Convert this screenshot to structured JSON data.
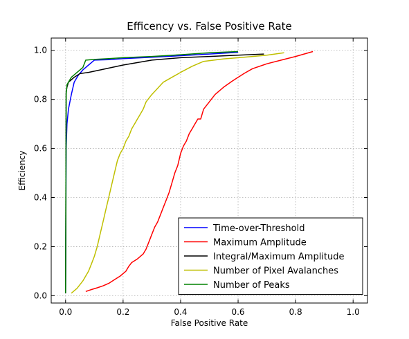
{
  "chart_data": {
    "type": "line",
    "title": "Efficency vs. False Positive Rate",
    "xlabel": "False Positive Rate",
    "ylabel": "Efficiency",
    "xlim": [
      -0.05,
      1.05
    ],
    "ylim": [
      -0.03,
      1.05
    ],
    "xticks": [
      0.0,
      0.2,
      0.4,
      0.6,
      0.8,
      1.0
    ],
    "xtick_labels": [
      "0.0",
      "0.2",
      "0.4",
      "0.6",
      "0.8",
      "1.0"
    ],
    "yticks": [
      0.0,
      0.2,
      0.4,
      0.6,
      0.8,
      1.0
    ],
    "ytick_labels": [
      "0.0",
      "0.2",
      "0.4",
      "0.6",
      "0.8",
      "1.0"
    ],
    "grid": true,
    "legend_position": "bottom-right",
    "series": [
      {
        "name": "Time-over-Threshold",
        "color": "#0000ff",
        "x": [
          0.0,
          0.002,
          0.005,
          0.01,
          0.02,
          0.03,
          0.045,
          0.06,
          0.08,
          0.1,
          0.15,
          0.2,
          0.3,
          0.4,
          0.5,
          0.6
        ],
        "y": [
          0.01,
          0.6,
          0.7,
          0.76,
          0.82,
          0.87,
          0.9,
          0.92,
          0.94,
          0.96,
          0.962,
          0.966,
          0.972,
          0.978,
          0.985,
          0.992
        ]
      },
      {
        "name": "Maximum Amplitude",
        "color": "#ff0000",
        "x": [
          0.07,
          0.09,
          0.11,
          0.13,
          0.15,
          0.17,
          0.19,
          0.21,
          0.22,
          0.23,
          0.25,
          0.27,
          0.28,
          0.29,
          0.3,
          0.31,
          0.32,
          0.33,
          0.34,
          0.35,
          0.36,
          0.37,
          0.38,
          0.39,
          0.4,
          0.41,
          0.42,
          0.43,
          0.44,
          0.45,
          0.46,
          0.47,
          0.48,
          0.5,
          0.52,
          0.55,
          0.58,
          0.62,
          0.65,
          0.7,
          0.75,
          0.8,
          0.86
        ],
        "y": [
          0.017,
          0.025,
          0.032,
          0.04,
          0.05,
          0.065,
          0.08,
          0.1,
          0.12,
          0.135,
          0.15,
          0.17,
          0.19,
          0.22,
          0.25,
          0.28,
          0.3,
          0.33,
          0.36,
          0.39,
          0.42,
          0.46,
          0.5,
          0.53,
          0.58,
          0.61,
          0.63,
          0.66,
          0.68,
          0.7,
          0.72,
          0.72,
          0.76,
          0.79,
          0.82,
          0.85,
          0.875,
          0.905,
          0.925,
          0.945,
          0.96,
          0.975,
          0.995
        ]
      },
      {
        "name": "Integral/Maximum Amplitude",
        "color": "#000000",
        "x": [
          0.0,
          0.002,
          0.005,
          0.01,
          0.02,
          0.03,
          0.05,
          0.08,
          0.12,
          0.2,
          0.3,
          0.4,
          0.5,
          0.6,
          0.69
        ],
        "y": [
          0.01,
          0.83,
          0.85,
          0.87,
          0.88,
          0.89,
          0.905,
          0.91,
          0.92,
          0.94,
          0.96,
          0.97,
          0.975,
          0.98,
          0.985
        ]
      },
      {
        "name": "Number of Pixel Avalanches",
        "color": "#bfbf00",
        "x": [
          0.02,
          0.04,
          0.06,
          0.08,
          0.09,
          0.1,
          0.11,
          0.12,
          0.13,
          0.14,
          0.15,
          0.16,
          0.17,
          0.18,
          0.19,
          0.2,
          0.21,
          0.22,
          0.23,
          0.24,
          0.25,
          0.26,
          0.27,
          0.28,
          0.3,
          0.32,
          0.34,
          0.37,
          0.4,
          0.44,
          0.48,
          0.55,
          0.62,
          0.7,
          0.76
        ],
        "y": [
          0.01,
          0.03,
          0.06,
          0.1,
          0.13,
          0.16,
          0.2,
          0.25,
          0.3,
          0.35,
          0.4,
          0.45,
          0.5,
          0.55,
          0.58,
          0.6,
          0.63,
          0.65,
          0.68,
          0.7,
          0.72,
          0.74,
          0.76,
          0.79,
          0.82,
          0.845,
          0.87,
          0.89,
          0.91,
          0.935,
          0.955,
          0.965,
          0.972,
          0.98,
          0.99
        ]
      },
      {
        "name": "Number of Peaks",
        "color": "#008000",
        "x": [
          0.0,
          0.002,
          0.005,
          0.01,
          0.015,
          0.02,
          0.03,
          0.04,
          0.06,
          0.07,
          0.1,
          0.15,
          0.2,
          0.3,
          0.4,
          0.5,
          0.6
        ],
        "y": [
          0.01,
          0.82,
          0.86,
          0.87,
          0.88,
          0.89,
          0.9,
          0.91,
          0.93,
          0.96,
          0.963,
          0.966,
          0.97,
          0.975,
          0.982,
          0.99,
          0.995
        ]
      }
    ]
  }
}
